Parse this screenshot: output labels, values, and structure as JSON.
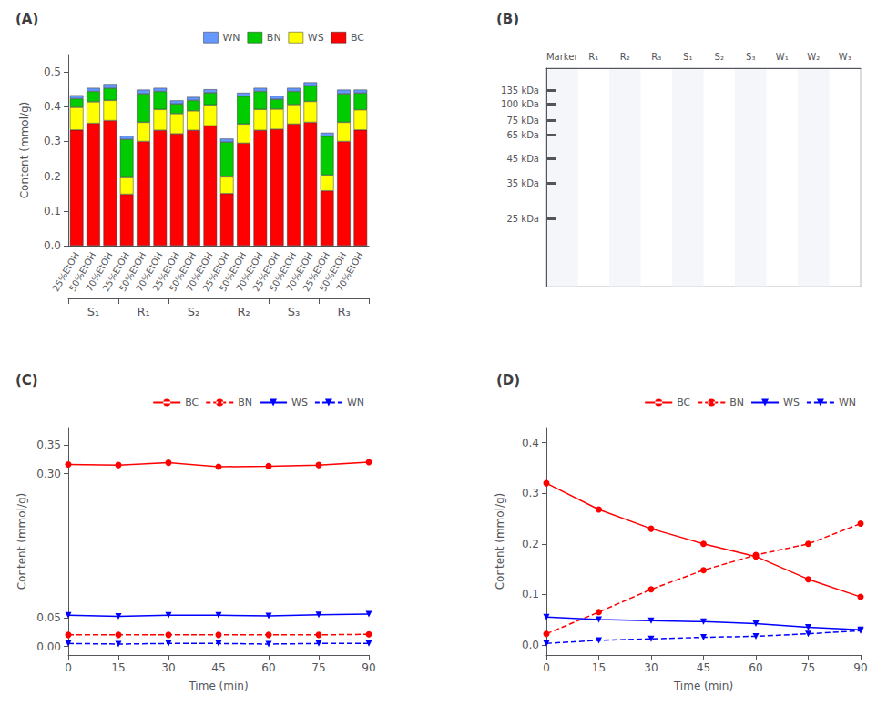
{
  "chart_data": [
    {
      "type": "bar",
      "title": "(A)",
      "stacked": true,
      "categories": [
        "25%EtOH",
        "50%EtOH",
        "70%EtOH",
        "25%EtOH",
        "50%EtOH",
        "70%EtOH",
        "25%EtOH",
        "50%EtOH",
        "70%EtOH",
        "25%EtOH",
        "50%EtOH",
        "70%EtOH",
        "25%EtOH",
        "50%EtOH",
        "70%EtOH",
        "25%EtOH",
        "50%EtOH",
        "70%EtOH"
      ],
      "groups": [
        "S₁",
        "R₁",
        "S₂",
        "R₂",
        "S₃",
        "R₃"
      ],
      "ylabel": "Content (mmol/g)",
      "ylim": [
        0,
        0.55
      ],
      "yticks": [
        {
          "value": 0,
          "label": "0.0"
        },
        0.1,
        0.2,
        0.3,
        0.4,
        0.5
      ],
      "grid": false,
      "legend": "upper right",
      "series": [
        {
          "name": "BC",
          "color": "#FF0000",
          "values": [
            0.333,
            0.352,
            0.36,
            0.148,
            0.3,
            0.332,
            0.322,
            0.332,
            0.345,
            0.15,
            0.295,
            0.332,
            0.335,
            0.35,
            0.355,
            0.158,
            0.3,
            0.333
          ]
        },
        {
          "name": "WS",
          "color": "#FFFF00",
          "values": [
            0.065,
            0.062,
            0.058,
            0.048,
            0.055,
            0.06,
            0.058,
            0.056,
            0.06,
            0.048,
            0.055,
            0.06,
            0.058,
            0.056,
            0.06,
            0.045,
            0.055,
            0.058
          ]
        },
        {
          "name": "BN",
          "color": "#00CC00",
          "values": [
            0.025,
            0.03,
            0.035,
            0.11,
            0.082,
            0.052,
            0.028,
            0.03,
            0.035,
            0.1,
            0.08,
            0.052,
            0.028,
            0.038,
            0.045,
            0.112,
            0.082,
            0.048
          ]
        },
        {
          "name": "WN",
          "color": "#6699FF",
          "values": [
            0.01,
            0.01,
            0.012,
            0.01,
            0.012,
            0.01,
            0.01,
            0.01,
            0.01,
            0.01,
            0.01,
            0.01,
            0.01,
            0.01,
            0.01,
            0.01,
            0.012,
            0.01
          ]
        }
      ]
    },
    {
      "type": "gel",
      "title": "(B)",
      "categories": [
        "Marker",
        "R₁",
        "R₂",
        "R₃",
        "S₁",
        "S₂",
        "S₃",
        "W₁",
        "W₂",
        "W₃"
      ],
      "ylim": [
        0,
        10
      ],
      "yticks": [
        {
          "value": 9.0,
          "label": "135 kDa"
        },
        {
          "value": 8.35,
          "label": "100 kDa"
        },
        {
          "value": 7.6,
          "label": "75 kDa"
        },
        {
          "value": 6.95,
          "label": "65 kDa"
        },
        {
          "value": 5.85,
          "label": "45 kDa"
        },
        {
          "value": 4.75,
          "label": "35 kDa"
        },
        {
          "value": 3.1,
          "label": "25 kDa"
        }
      ],
      "grid": false
    },
    {
      "type": "line",
      "title": "(C)",
      "x": [
        0,
        15,
        30,
        45,
        60,
        75,
        90
      ],
      "xlabel": "Time (min)",
      "ylabel": "Content (mmol/g)",
      "xlim": [
        0,
        90
      ],
      "xticks": [
        0,
        15,
        30,
        45,
        60,
        75,
        90
      ],
      "ylim": [
        -0.015,
        0.38
      ],
      "yticks": [
        {
          "value": 0,
          "label": "0.00"
        },
        0.05,
        {
          "value": 0.3,
          "label": "0.30"
        },
        0.35
      ],
      "grid": false,
      "legend": "upper right",
      "series": [
        {
          "name": "BC",
          "color": "red",
          "marker": "circle",
          "line_style": "solid",
          "values": [
            0.316,
            0.315,
            0.319,
            0.312,
            0.313,
            0.315,
            0.32
          ]
        },
        {
          "name": "BN",
          "color": "red",
          "marker": "circle",
          "line_style": "dashed",
          "values": [
            0.02,
            0.02,
            0.02,
            0.02,
            0.02,
            0.02,
            0.021
          ]
        },
        {
          "name": "WS",
          "color": "blue",
          "marker": "triangle_down",
          "line_style": "solid",
          "values": [
            0.054,
            0.052,
            0.054,
            0.054,
            0.053,
            0.055,
            0.056
          ]
        },
        {
          "name": "WN",
          "color": "blue",
          "marker": "triangle_down",
          "line_style": "dashed",
          "values": [
            0.005,
            0.004,
            0.005,
            0.005,
            0.004,
            0.005,
            0.005
          ]
        }
      ]
    },
    {
      "type": "line",
      "title": "(D)",
      "x": [
        0,
        15,
        30,
        45,
        60,
        75,
        90
      ],
      "xlabel": "Time (min)",
      "ylabel": "Content (mmol/g)",
      "xlim": [
        0,
        90
      ],
      "xticks": [
        0,
        15,
        30,
        45,
        60,
        75,
        90
      ],
      "ylim": [
        -0.02,
        0.43
      ],
      "yticks": [
        {
          "value": 0,
          "label": "0.0"
        },
        0.1,
        0.2,
        0.3,
        0.4
      ],
      "grid": false,
      "legend": "upper right",
      "series": [
        {
          "name": "BC",
          "color": "red",
          "marker": "circle",
          "line_style": "solid",
          "values": [
            0.32,
            0.268,
            0.23,
            0.2,
            0.175,
            0.13,
            0.095
          ]
        },
        {
          "name": "BN",
          "color": "red",
          "marker": "circle",
          "line_style": "dashed",
          "values": [
            0.022,
            0.065,
            0.11,
            0.148,
            0.178,
            0.2,
            0.24
          ]
        },
        {
          "name": "WS",
          "color": "blue",
          "marker": "triangle_down",
          "line_style": "solid",
          "values": [
            0.055,
            0.05,
            0.048,
            0.046,
            0.042,
            0.035,
            0.03
          ]
        },
        {
          "name": "WN",
          "color": "blue",
          "marker": "triangle_down",
          "line_style": "dashed",
          "values": [
            0.003,
            0.009,
            0.012,
            0.015,
            0.017,
            0.022,
            0.028
          ]
        }
      ]
    }
  ]
}
